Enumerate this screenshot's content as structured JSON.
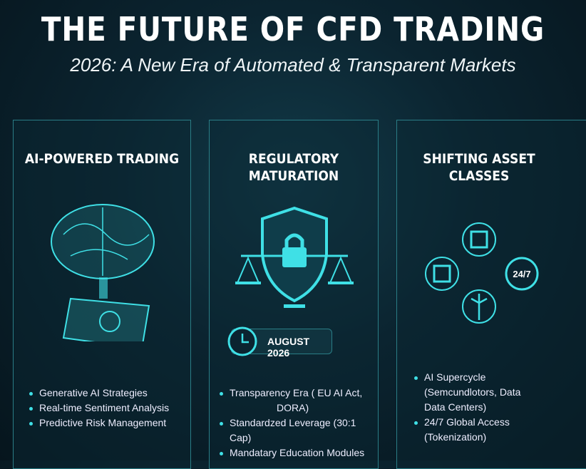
{
  "header": {
    "title": "THE FUTURE OF CFD TRADING",
    "subtitle": "2026: A New Era of Automated & Transparent Markets"
  },
  "panels": [
    {
      "title": "AI-POWERED TRADING",
      "icon": "brain-tablet-icon",
      "items": [
        "Generative AI Strategies",
        "Real-time Sentiment Analysis",
        "Predictive Risk Management"
      ]
    },
    {
      "title_lines": [
        "REGULATORY",
        "MATURATION"
      ],
      "icon": "shield-lock-scales-icon",
      "badge": {
        "icon": "clock-icon",
        "label": "AUGUST 2026"
      },
      "items": [
        "Transparency Era ( EU AI Act,",
        "DORA)",
        "Standardzed Leverage (30:1 Cap)",
        "Mandatary Education Modules"
      ]
    },
    {
      "title_lines": [
        "SHIFTING ASSET",
        "CLASSES"
      ],
      "icons": [
        "chip-icon",
        "chip-icon",
        "24-7-icon",
        "wind-turbine-icon"
      ],
      "icon_24_7_label": "24/7",
      "items": [
        "AI Supercycle",
        "(Semcundlotors, Data",
        "Data Centers)",
        "24/7 Global Access",
        "(Tokenization)"
      ]
    }
  ],
  "colors": {
    "accent": "#3fe0e6",
    "background": "#0b2430"
  }
}
